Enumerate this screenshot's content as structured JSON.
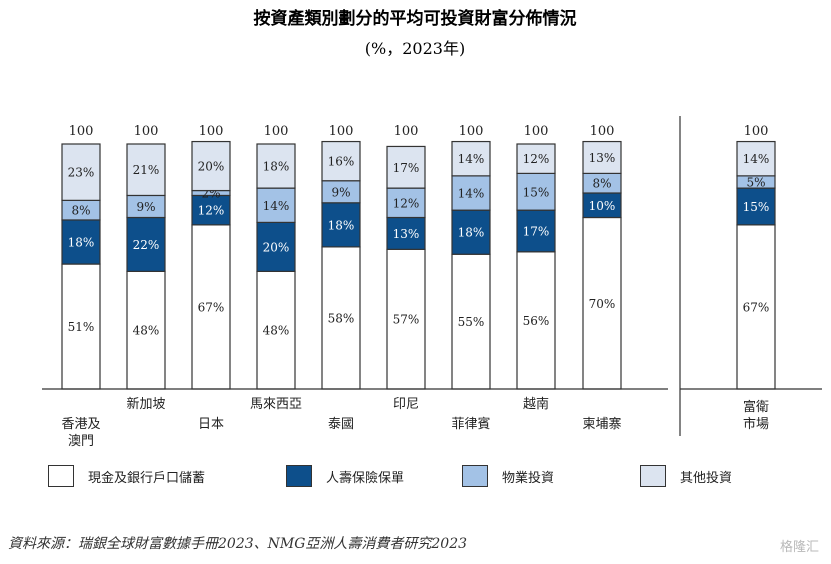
{
  "chart_data": {
    "type": "bar",
    "title": "按資產類別劃分的平均可投資財富分佈情況",
    "subtitle": "(%，2023年)",
    "categories": [
      "香港及澳門",
      "新加坡",
      "日本",
      "馬來西亞",
      "泰國",
      "印尼",
      "菲律賓",
      "越南",
      "柬埔寨",
      "富衛市場"
    ],
    "category_labels": [
      [
        "香港及",
        "澳門"
      ],
      [
        "新加坡"
      ],
      [
        "日本"
      ],
      [
        "馬來西亞"
      ],
      [
        "泰國"
      ],
      [
        "印尼"
      ],
      [
        "菲律賓"
      ],
      [
        "越南"
      ],
      [
        "柬埔寨"
      ],
      [
        "富衛",
        "市場"
      ]
    ],
    "totals": [
      100,
      100,
      100,
      100,
      100,
      100,
      100,
      100,
      100,
      100
    ],
    "total_labels": [
      "100",
      "100",
      "100",
      "100",
      "100",
      "100",
      "100",
      "100",
      "100",
      "100"
    ],
    "series": [
      {
        "name": "現金及銀行戶口儲蓄",
        "color": "#ffffff",
        "label_color": "#222222",
        "values": [
          51,
          48,
          67,
          48,
          58,
          57,
          55,
          56,
          70,
          67
        ],
        "labels": [
          "51%",
          "48%",
          "67%",
          "48%",
          "58%",
          "57%",
          "55%",
          "56%",
          "70%",
          "67%"
        ]
      },
      {
        "name": "人壽保險保單",
        "color": "#0d4f8b",
        "label_color": "#ffffff",
        "values": [
          18,
          22,
          12,
          20,
          18,
          13,
          18,
          17,
          10,
          15
        ],
        "labels": [
          "18%",
          "22%",
          "12%",
          "20%",
          "18%",
          "13%",
          "18%",
          "17%",
          "10%",
          "15%"
        ]
      },
      {
        "name": "物業投資",
        "color": "#a3c2e6",
        "label_color": "#222222",
        "values": [
          8,
          9,
          2,
          14,
          9,
          12,
          14,
          15,
          8,
          5
        ],
        "labels": [
          "8%",
          "9%",
          "2%",
          "14%",
          "9%",
          "12%",
          "14%",
          "15%",
          "8%",
          "5%"
        ]
      },
      {
        "name": "其他投資",
        "color": "#dce4f0",
        "label_color": "#222222",
        "values": [
          23,
          21,
          20,
          18,
          16,
          17,
          14,
          12,
          13,
          14
        ],
        "labels": [
          "23%",
          "21%",
          "20%",
          "18%",
          "16%",
          "17%",
          "14%",
          "12%",
          "13%",
          "14%"
        ]
      }
    ],
    "ylim": [
      0,
      100
    ]
  },
  "legend": {
    "items": [
      {
        "label": "現金及銀行戶口儲蓄",
        "color": "#ffffff"
      },
      {
        "label": "人壽保險保單",
        "color": "#0d4f8b"
      },
      {
        "label": "物業投資",
        "color": "#a3c2e6"
      },
      {
        "label": "其他投資",
        "color": "#dce4f0"
      }
    ]
  },
  "source": "資料來源：瑞銀全球財富數據手冊2023、NMG亞洲人壽消費者研究2023",
  "watermark": "格隆汇"
}
